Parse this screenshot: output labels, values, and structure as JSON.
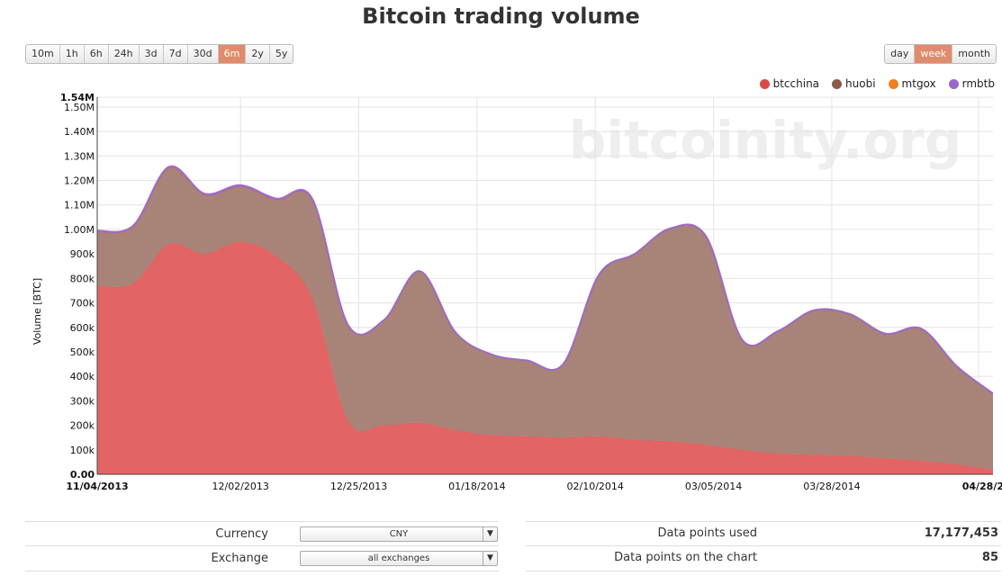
{
  "page": {
    "title": "Bitcoin trading volume"
  },
  "range_buttons": [
    {
      "label": "10m",
      "active": false
    },
    {
      "label": "1h",
      "active": false
    },
    {
      "label": "6h",
      "active": false
    },
    {
      "label": "24h",
      "active": false
    },
    {
      "label": "3d",
      "active": false
    },
    {
      "label": "7d",
      "active": false
    },
    {
      "label": "30d",
      "active": false
    },
    {
      "label": "6m",
      "active": true
    },
    {
      "label": "2y",
      "active": false
    },
    {
      "label": "5y",
      "active": false
    }
  ],
  "period_buttons": [
    {
      "label": "day",
      "active": false
    },
    {
      "label": "week",
      "active": true
    },
    {
      "label": "month",
      "active": false
    }
  ],
  "colors": {
    "btcchina": "#d94a46",
    "huobi": "#8c5a4a",
    "mtgox": "#f08020",
    "rmbtb": "#9a66cc",
    "area_btcchina": "#e36464",
    "area_huobi": "#a88378",
    "active_button": "#e08b6b"
  },
  "watermark": "bitcoinity.org",
  "chart_data": {
    "type": "area",
    "stacked": true,
    "ylabel": "Volume [BTC]",
    "ylim": [
      0,
      1540000
    ],
    "y_ticks": [
      {
        "value": 0,
        "label": "0.00"
      },
      {
        "value": 100000,
        "label": "100k"
      },
      {
        "value": 200000,
        "label": "200k"
      },
      {
        "value": 300000,
        "label": "300k"
      },
      {
        "value": 400000,
        "label": "400k"
      },
      {
        "value": 500000,
        "label": "500k"
      },
      {
        "value": 600000,
        "label": "600k"
      },
      {
        "value": 700000,
        "label": "700k"
      },
      {
        "value": 800000,
        "label": "800k"
      },
      {
        "value": 900000,
        "label": "900k"
      },
      {
        "value": 1000000,
        "label": "1.00M"
      },
      {
        "value": 1100000,
        "label": "1.10M"
      },
      {
        "value": 1200000,
        "label": "1.20M"
      },
      {
        "value": 1300000,
        "label": "1.30M"
      },
      {
        "value": 1400000,
        "label": "1.40M"
      },
      {
        "value": 1500000,
        "label": "1.50M"
      },
      {
        "value": 1540000,
        "label": "1.54M"
      }
    ],
    "x_ticks": [
      {
        "index": 0,
        "label": "11/04/2013"
      },
      {
        "index": 4,
        "label": "12/02/2013"
      },
      {
        "index": 7.3,
        "label": "12/25/2013"
      },
      {
        "index": 10.6,
        "label": "01/18/2014"
      },
      {
        "index": 13.9,
        "label": "02/10/2014"
      },
      {
        "index": 17.2,
        "label": "03/05/2014"
      },
      {
        "index": 20.5,
        "label": "03/28/2014"
      },
      {
        "index": 24.6,
        "label": "04/28/2"
      }
    ],
    "x": [
      "11/04/2013",
      "11/11/2013",
      "11/18/2013",
      "11/25/2013",
      "12/02/2013",
      "12/09/2013",
      "12/16/2013",
      "12/23/2013",
      "12/30/2013",
      "01/06/2014",
      "01/13/2014",
      "01/20/2014",
      "01/27/2014",
      "02/03/2014",
      "02/10/2014",
      "02/17/2014",
      "02/24/2014",
      "03/03/2014",
      "03/10/2014",
      "03/17/2014",
      "03/24/2014",
      "03/31/2014",
      "04/07/2014",
      "04/14/2014",
      "04/21/2014",
      "04/28/2014"
    ],
    "series": [
      {
        "name": "btcchina",
        "values": [
          770000,
          780000,
          940000,
          900000,
          950000,
          890000,
          720000,
          220000,
          200000,
          210000,
          180000,
          160000,
          155000,
          150000,
          155000,
          140000,
          135000,
          120000,
          100000,
          85000,
          80000,
          75000,
          65000,
          55000,
          40000,
          20000
        ]
      },
      {
        "name": "huobi",
        "values": [
          220000,
          230000,
          310000,
          240000,
          225000,
          230000,
          400000,
          390000,
          430000,
          620000,
          400000,
          330000,
          310000,
          300000,
          660000,
          760000,
          870000,
          850000,
          450000,
          500000,
          590000,
          580000,
          510000,
          540000,
          400000,
          310000
        ]
      },
      {
        "name": "mtgox",
        "values": [
          0,
          0,
          0,
          0,
          0,
          0,
          0,
          0,
          0,
          0,
          0,
          0,
          0,
          0,
          0,
          0,
          0,
          0,
          0,
          0,
          0,
          0,
          0,
          0,
          0,
          0
        ]
      },
      {
        "name": "rmbtb",
        "values": [
          5000,
          5000,
          6000,
          6000,
          6000,
          6000,
          6000,
          0,
          0,
          0,
          0,
          0,
          0,
          0,
          0,
          0,
          0,
          0,
          0,
          0,
          0,
          0,
          0,
          0,
          0,
          0
        ]
      }
    ],
    "legend": {
      "position": "top-right",
      "entries": [
        "btcchina",
        "huobi",
        "mtgox",
        "rmbtb"
      ]
    },
    "grid": true
  },
  "form": {
    "currency": {
      "label": "Currency",
      "value": "CNY"
    },
    "exchange": {
      "label": "Exchange",
      "value": "all exchanges"
    }
  },
  "stats": {
    "points_used": {
      "label": "Data points used",
      "value": "17,177,453"
    },
    "points_chart": {
      "label": "Data points on the chart",
      "value": "85"
    }
  }
}
